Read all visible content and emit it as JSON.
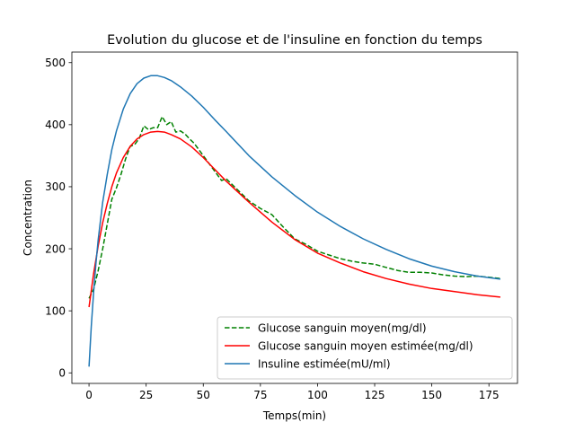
{
  "chart_data": {
    "type": "line",
    "title": "Evolution du glucose et de l'insuline en fonction du temps",
    "xlabel": "Temps(min)",
    "ylabel": "Concentration",
    "xlim": [
      -7.5,
      187.5
    ],
    "ylim": [
      -17,
      517
    ],
    "xticks": [
      0,
      25,
      50,
      75,
      100,
      125,
      150,
      175
    ],
    "yticks": [
      0,
      100,
      200,
      300,
      400,
      500
    ],
    "grid": false,
    "legend_position": "lower-right",
    "series": [
      {
        "name": "Glucose sanguin moyen(mg/dl)",
        "color": "#008000",
        "style": "dashed",
        "x": [
          0,
          2,
          4,
          6,
          8,
          10,
          12,
          14,
          16,
          18,
          20,
          22,
          24,
          26,
          28,
          30,
          32,
          34,
          36,
          38,
          40,
          42,
          44,
          46,
          48,
          50,
          52,
          54,
          56,
          58,
          60,
          65,
          70,
          75,
          80,
          85,
          90,
          95,
          100,
          105,
          110,
          115,
          120,
          125,
          130,
          135,
          140,
          145,
          150,
          155,
          160,
          165,
          170,
          175,
          180
        ],
        "y": [
          120,
          135,
          165,
          200,
          240,
          280,
          298,
          320,
          345,
          365,
          368,
          378,
          398,
          392,
          395,
          395,
          413,
          400,
          405,
          388,
          390,
          385,
          377,
          370,
          360,
          350,
          340,
          330,
          320,
          310,
          313,
          295,
          277,
          265,
          255,
          235,
          216,
          207,
          196,
          190,
          184,
          180,
          177,
          175,
          170,
          165,
          162,
          162,
          161,
          158,
          156,
          155,
          156,
          154,
          152
        ]
      },
      {
        "name": "Glucose sanguin moyen estimée(mg/dl)",
        "color": "#ff0000",
        "style": "solid",
        "x": [
          0,
          2,
          4,
          6,
          8,
          10,
          12,
          15,
          18,
          21,
          24,
          27,
          30,
          33,
          36,
          40,
          45,
          50,
          55,
          60,
          70,
          80,
          90,
          100,
          110,
          120,
          130,
          140,
          150,
          160,
          170,
          180
        ],
        "y": [
          106,
          160,
          205,
          242,
          273,
          300,
          322,
          347,
          365,
          377,
          384,
          388,
          389,
          388,
          384,
          377,
          364,
          347,
          328,
          309,
          275,
          243,
          215,
          193,
          177,
          163,
          152,
          143,
          136,
          131,
          126,
          122
        ]
      },
      {
        "name": "Insuline estimée(mU/ml)",
        "color": "#1f77b4",
        "style": "solid",
        "x": [
          0,
          1,
          2,
          3,
          4,
          6,
          8,
          10,
          12,
          15,
          18,
          21,
          24,
          27,
          30,
          33,
          36,
          40,
          45,
          50,
          55,
          60,
          70,
          80,
          90,
          100,
          110,
          120,
          130,
          140,
          150,
          160,
          170,
          180
        ],
        "y": [
          10,
          75,
          130,
          175,
          215,
          275,
          320,
          360,
          390,
          425,
          450,
          466,
          475,
          479,
          479,
          476,
          471,
          461,
          446,
          428,
          408,
          389,
          350,
          316,
          286,
          259,
          236,
          216,
          199,
          184,
          172,
          163,
          156,
          151
        ]
      }
    ]
  }
}
